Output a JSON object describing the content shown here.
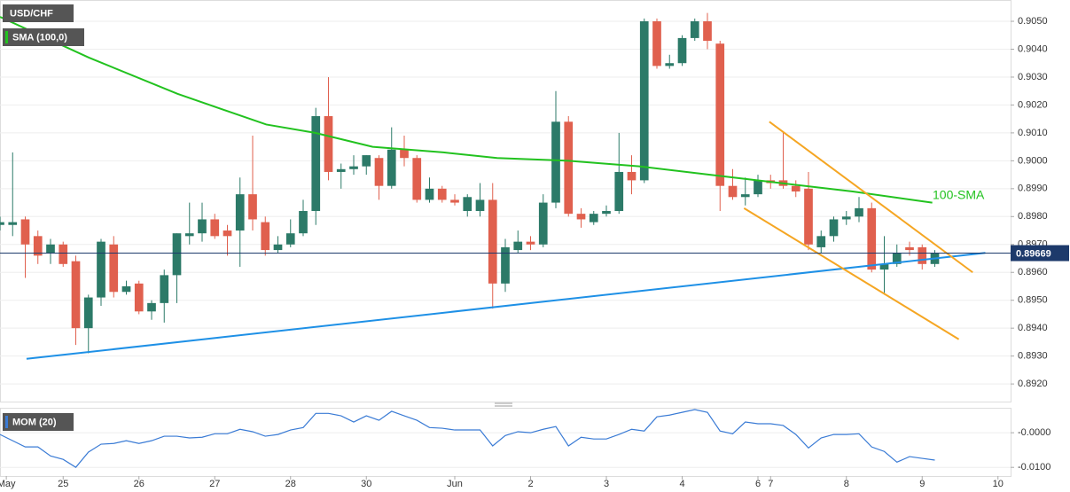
{
  "chart_data": {
    "type": "candlestick",
    "symbol": "USD/CHF",
    "indicator_label": "SMA (100,0)",
    "sma_annotation": "100-SMA",
    "price_label": "0.89669",
    "price": 0.89669,
    "rising_color": "#2c7a68",
    "falling_color": "#e0604e",
    "sma_color": "#22c21f",
    "support_color": "#1e90e6",
    "channel_color": "#f5a623",
    "grid": true,
    "xlim": [
      0,
      80
    ],
    "xticks": [
      {
        "value": 0.5,
        "label": "May"
      },
      {
        "value": 5,
        "label": "25"
      },
      {
        "value": 11,
        "label": "26"
      },
      {
        "value": 17,
        "label": "27"
      },
      {
        "value": 23,
        "label": "28"
      },
      {
        "value": 29,
        "label": "30"
      },
      {
        "value": 36,
        "label": "Jun"
      },
      {
        "value": 42,
        "label": "2"
      },
      {
        "value": 48,
        "label": "3"
      },
      {
        "value": 54,
        "label": "4"
      },
      {
        "value": 60,
        "label": "6"
      },
      {
        "value": 61,
        "label": "7"
      },
      {
        "value": 67,
        "label": "8"
      },
      {
        "value": 73,
        "label": "9"
      },
      {
        "value": 79,
        "label": "10"
      }
    ],
    "ylim": [
      0.8914,
      0.9057
    ],
    "yticks": [
      {
        "value": 0.892,
        "label": "0.8920"
      },
      {
        "value": 0.893,
        "label": "0.8930"
      },
      {
        "value": 0.894,
        "label": "0.8940"
      },
      {
        "value": 0.895,
        "label": "0.8950"
      },
      {
        "value": 0.896,
        "label": "0.8960"
      },
      {
        "value": 0.897,
        "label": "0.8970"
      },
      {
        "value": 0.898,
        "label": "0.8980"
      },
      {
        "value": 0.899,
        "label": "0.8990"
      },
      {
        "value": 0.9,
        "label": "0.9000"
      },
      {
        "value": 0.901,
        "label": "0.9010"
      },
      {
        "value": 0.902,
        "label": "0.9020"
      },
      {
        "value": 0.903,
        "label": "0.9030"
      },
      {
        "value": 0.904,
        "label": "0.9040"
      },
      {
        "value": 0.905,
        "label": "0.9050"
      }
    ],
    "candles": {
      "open": [
        0.8977,
        0.8977,
        0.8979,
        0.8973,
        0.8967,
        0.897,
        0.8964,
        0.894,
        0.8951,
        0.897,
        0.8953,
        0.8956,
        0.8946,
        0.8949,
        0.8959,
        0.8973,
        0.8974,
        0.8979,
        0.8975,
        0.8975,
        0.8988,
        0.8978,
        0.8968,
        0.897,
        0.8974,
        0.8982,
        0.9016,
        0.8996,
        0.8997,
        0.8998,
        0.9001,
        0.8991,
        0.9004,
        0.9001,
        0.8986,
        0.899,
        0.8986,
        0.8982,
        0.8982,
        0.8986,
        0.8956,
        0.8968,
        0.8971,
        0.897,
        0.8985,
        0.9014,
        0.8981,
        0.8978,
        0.8981,
        0.8982,
        0.8996,
        0.8993,
        0.905,
        0.9034,
        0.9035,
        0.9044,
        0.905,
        0.9042,
        0.8991,
        0.8987,
        0.8988,
        0.8993,
        0.8993,
        0.8991,
        0.899,
        0.8969,
        0.8973,
        0.8979,
        0.898,
        0.8983,
        0.8961,
        0.8963,
        0.8969,
        0.8969,
        0.8963
      ],
      "high": [
        0.898,
        0.9003,
        0.898,
        0.8975,
        0.8972,
        0.8971,
        0.8966,
        0.8952,
        0.8972,
        0.8973,
        0.8957,
        0.8957,
        0.895,
        0.8961,
        0.8974,
        0.8985,
        0.8985,
        0.8981,
        0.8977,
        0.8994,
        0.9009,
        0.898,
        0.8973,
        0.8979,
        0.8986,
        0.9019,
        0.903,
        0.8999,
        0.9002,
        0.9002,
        0.9002,
        0.9012,
        0.9009,
        0.9002,
        0.8994,
        0.8991,
        0.8988,
        0.8988,
        0.8992,
        0.8992,
        0.8972,
        0.8975,
        0.8973,
        0.8988,
        0.9025,
        0.9016,
        0.8983,
        0.8982,
        0.8984,
        0.901,
        0.9002,
        0.9051,
        0.9051,
        0.9038,
        0.9045,
        0.9051,
        0.9053,
        0.9043,
        0.8997,
        0.8994,
        0.8995,
        0.8995,
        0.901,
        0.8993,
        0.8996,
        0.8975,
        0.898,
        0.8982,
        0.8987,
        0.8985,
        0.8973,
        0.897,
        0.8971,
        0.897,
        0.8968
      ],
      "low": [
        0.8975,
        0.8973,
        0.8958,
        0.8963,
        0.8963,
        0.8962,
        0.8934,
        0.8931,
        0.8948,
        0.8951,
        0.8952,
        0.8945,
        0.8943,
        0.8942,
        0.8949,
        0.897,
        0.8971,
        0.8972,
        0.8966,
        0.8962,
        0.8975,
        0.8966,
        0.8967,
        0.8969,
        0.8973,
        0.8977,
        0.8993,
        0.899,
        0.8995,
        0.8995,
        0.8986,
        0.899,
        0.8998,
        0.8985,
        0.8985,
        0.8985,
        0.8984,
        0.898,
        0.898,
        0.8947,
        0.8953,
        0.8967,
        0.8968,
        0.8969,
        0.8983,
        0.898,
        0.8976,
        0.8977,
        0.898,
        0.8981,
        0.8988,
        0.8992,
        0.9033,
        0.9033,
        0.9034,
        0.9043,
        0.904,
        0.8982,
        0.8986,
        0.8984,
        0.8987,
        0.899,
        0.899,
        0.8987,
        0.8968,
        0.8967,
        0.8971,
        0.8977,
        0.8978,
        0.896,
        0.8952,
        0.8962,
        0.8966,
        0.8961,
        0.8962
      ],
      "close": [
        0.8978,
        0.8978,
        0.897,
        0.8966,
        0.897,
        0.8963,
        0.894,
        0.8951,
        0.8971,
        0.8953,
        0.8955,
        0.8946,
        0.8949,
        0.8959,
        0.8974,
        0.8974,
        0.8979,
        0.8973,
        0.8973,
        0.8988,
        0.8979,
        0.8968,
        0.897,
        0.8974,
        0.8982,
        0.9016,
        0.8996,
        0.8997,
        0.8998,
        0.9002,
        0.8991,
        0.9004,
        0.9001,
        0.8986,
        0.899,
        0.8986,
        0.8985,
        0.8987,
        0.8986,
        0.8956,
        0.8969,
        0.8971,
        0.897,
        0.8985,
        0.9014,
        0.8981,
        0.8979,
        0.8981,
        0.8982,
        0.8996,
        0.8993,
        0.905,
        0.9034,
        0.9035,
        0.9044,
        0.905,
        0.9043,
        0.8991,
        0.8987,
        0.8988,
        0.8993,
        0.8992,
        0.8991,
        0.8989,
        0.897,
        0.8973,
        0.8979,
        0.898,
        0.8983,
        0.8961,
        0.8963,
        0.8967,
        0.8968,
        0.8963,
        0.8967
      ]
    },
    "sma": {
      "x": [
        0,
        7.03,
        14.05,
        21.08,
        24.95,
        29.5,
        35.1,
        39.35,
        45,
        50.6,
        56.2,
        61.8,
        67.5,
        73.8
      ],
      "values": [
        0.90516,
        0.9037,
        0.9024,
        0.9013,
        0.901,
        0.9005,
        0.9003,
        0.9001,
        0.9,
        0.8998,
        0.8995,
        0.8992,
        0.8989,
        0.8985
      ]
    },
    "support_line": {
      "x": [
        2.1,
        78
      ],
      "values": [
        0.8929,
        0.8967
      ]
    },
    "channel_upper": {
      "x": [
        60.9,
        77
      ],
      "values": [
        0.9014,
        0.896
      ]
    },
    "channel_lower": {
      "x": [
        58.9,
        75.9
      ],
      "values": [
        0.8983,
        0.8936
      ]
    },
    "momentum": {
      "label": "MOM (20)",
      "color": "#3a7bd5",
      "ylim": [
        -0.012,
        0.0067
      ],
      "yticks": [
        {
          "value": 0,
          "label": "-0.0000"
        },
        {
          "value": -0.01,
          "label": "-0.0100"
        }
      ],
      "values": [
        -0.0005,
        -0.0023,
        -0.0041,
        -0.0041,
        -0.0067,
        -0.0077,
        -0.01,
        -0.0056,
        -0.0033,
        -0.0031,
        -0.0023,
        -0.0031,
        -0.0023,
        -0.001,
        -0.001,
        -0.0015,
        -0.0013,
        -0.0003,
        -0.0003,
        0.001,
        0.0003,
        -0.001,
        -0.0005,
        0.0008,
        0.0015,
        0.0056,
        0.0056,
        0.0049,
        0.0031,
        0.0049,
        0.0036,
        0.0062,
        0.0049,
        0.0036,
        0.0015,
        0.0013,
        0.0008,
        0.0008,
        0.0008,
        -0.0038,
        -0.0008,
        0.0003,
        0.0,
        0.001,
        0.0018,
        -0.0038,
        -0.0013,
        -0.0018,
        -0.0018,
        -0.0005,
        0.001,
        0.0005,
        0.0046,
        0.0051,
        0.0059,
        0.0067,
        0.0059,
        0.0005,
        -0.0003,
        0.0031,
        0.0026,
        0.0026,
        0.0021,
        -0.0005,
        -0.0044,
        -0.0015,
        -0.0005,
        -0.0005,
        -0.0003,
        -0.0041,
        -0.0054,
        -0.0085,
        -0.0069,
        -0.0074,
        -0.0079
      ]
    }
  }
}
